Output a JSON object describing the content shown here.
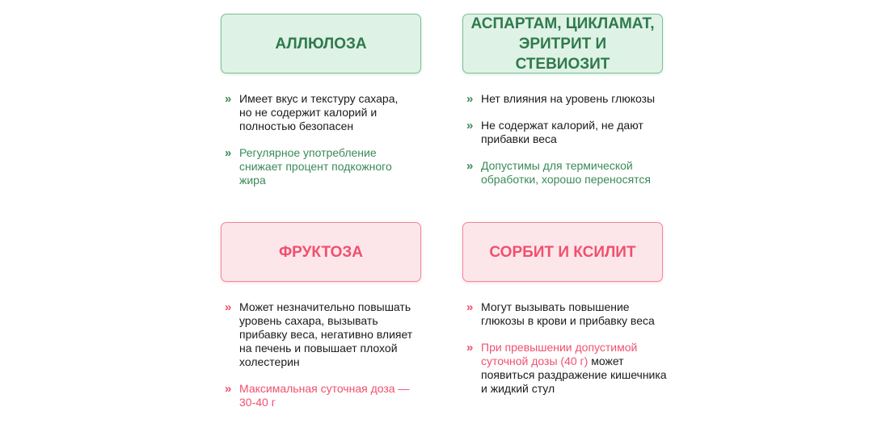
{
  "accent_colors": {
    "green": "#2f7a4c",
    "pink": "#f0506e"
  },
  "icon": "chevron-right-icon",
  "cards": [
    {
      "title": "АЛЛЮЛОЗА",
      "bullets": [
        [
          {
            "text": "Имеет вкус и текстуру сахара, но не содержит калорий и полностью безопасен",
            "accent": false
          }
        ],
        [
          {
            "text": "Регулярное употребление снижает процент подкожного жира",
            "accent": true
          }
        ]
      ]
    },
    {
      "title": "АСПАРТАМ, ЦИКЛАМАТ, ЭРИТРИТ И СТЕВИОЗИТ",
      "bullets": [
        [
          {
            "text": "Нет влияния на уровень глюкозы",
            "accent": false
          }
        ],
        [
          {
            "text": "Не содержат калорий, не дают прибавки веса",
            "accent": false
          }
        ],
        [
          {
            "text": "Допустимы для термической обработки, хорошо переносятся",
            "accent": true
          }
        ]
      ]
    },
    {
      "title": "ФРУКТОЗА",
      "bullets": [
        [
          {
            "text": "Может незначительно повышать уровень сахара, вызывать прибавку веса, негативно влияет на печень и повышает плохой холестерин",
            "accent": false
          }
        ],
        [
          {
            "text": "Максимальная суточная доза — 30-40 г",
            "accent": true
          }
        ]
      ]
    },
    {
      "title": "СОРБИТ И КСИЛИТ",
      "bullets": [
        [
          {
            "text": "Могут вызывать повышение глюкозы в крови и прибавку веса",
            "accent": false
          }
        ],
        [
          {
            "text": "При превышении допустимой суточной дозы (40 г)",
            "accent": true
          },
          {
            "text": " может появиться раздражение кишечника и жидкий стул",
            "accent": false
          }
        ]
      ]
    }
  ]
}
